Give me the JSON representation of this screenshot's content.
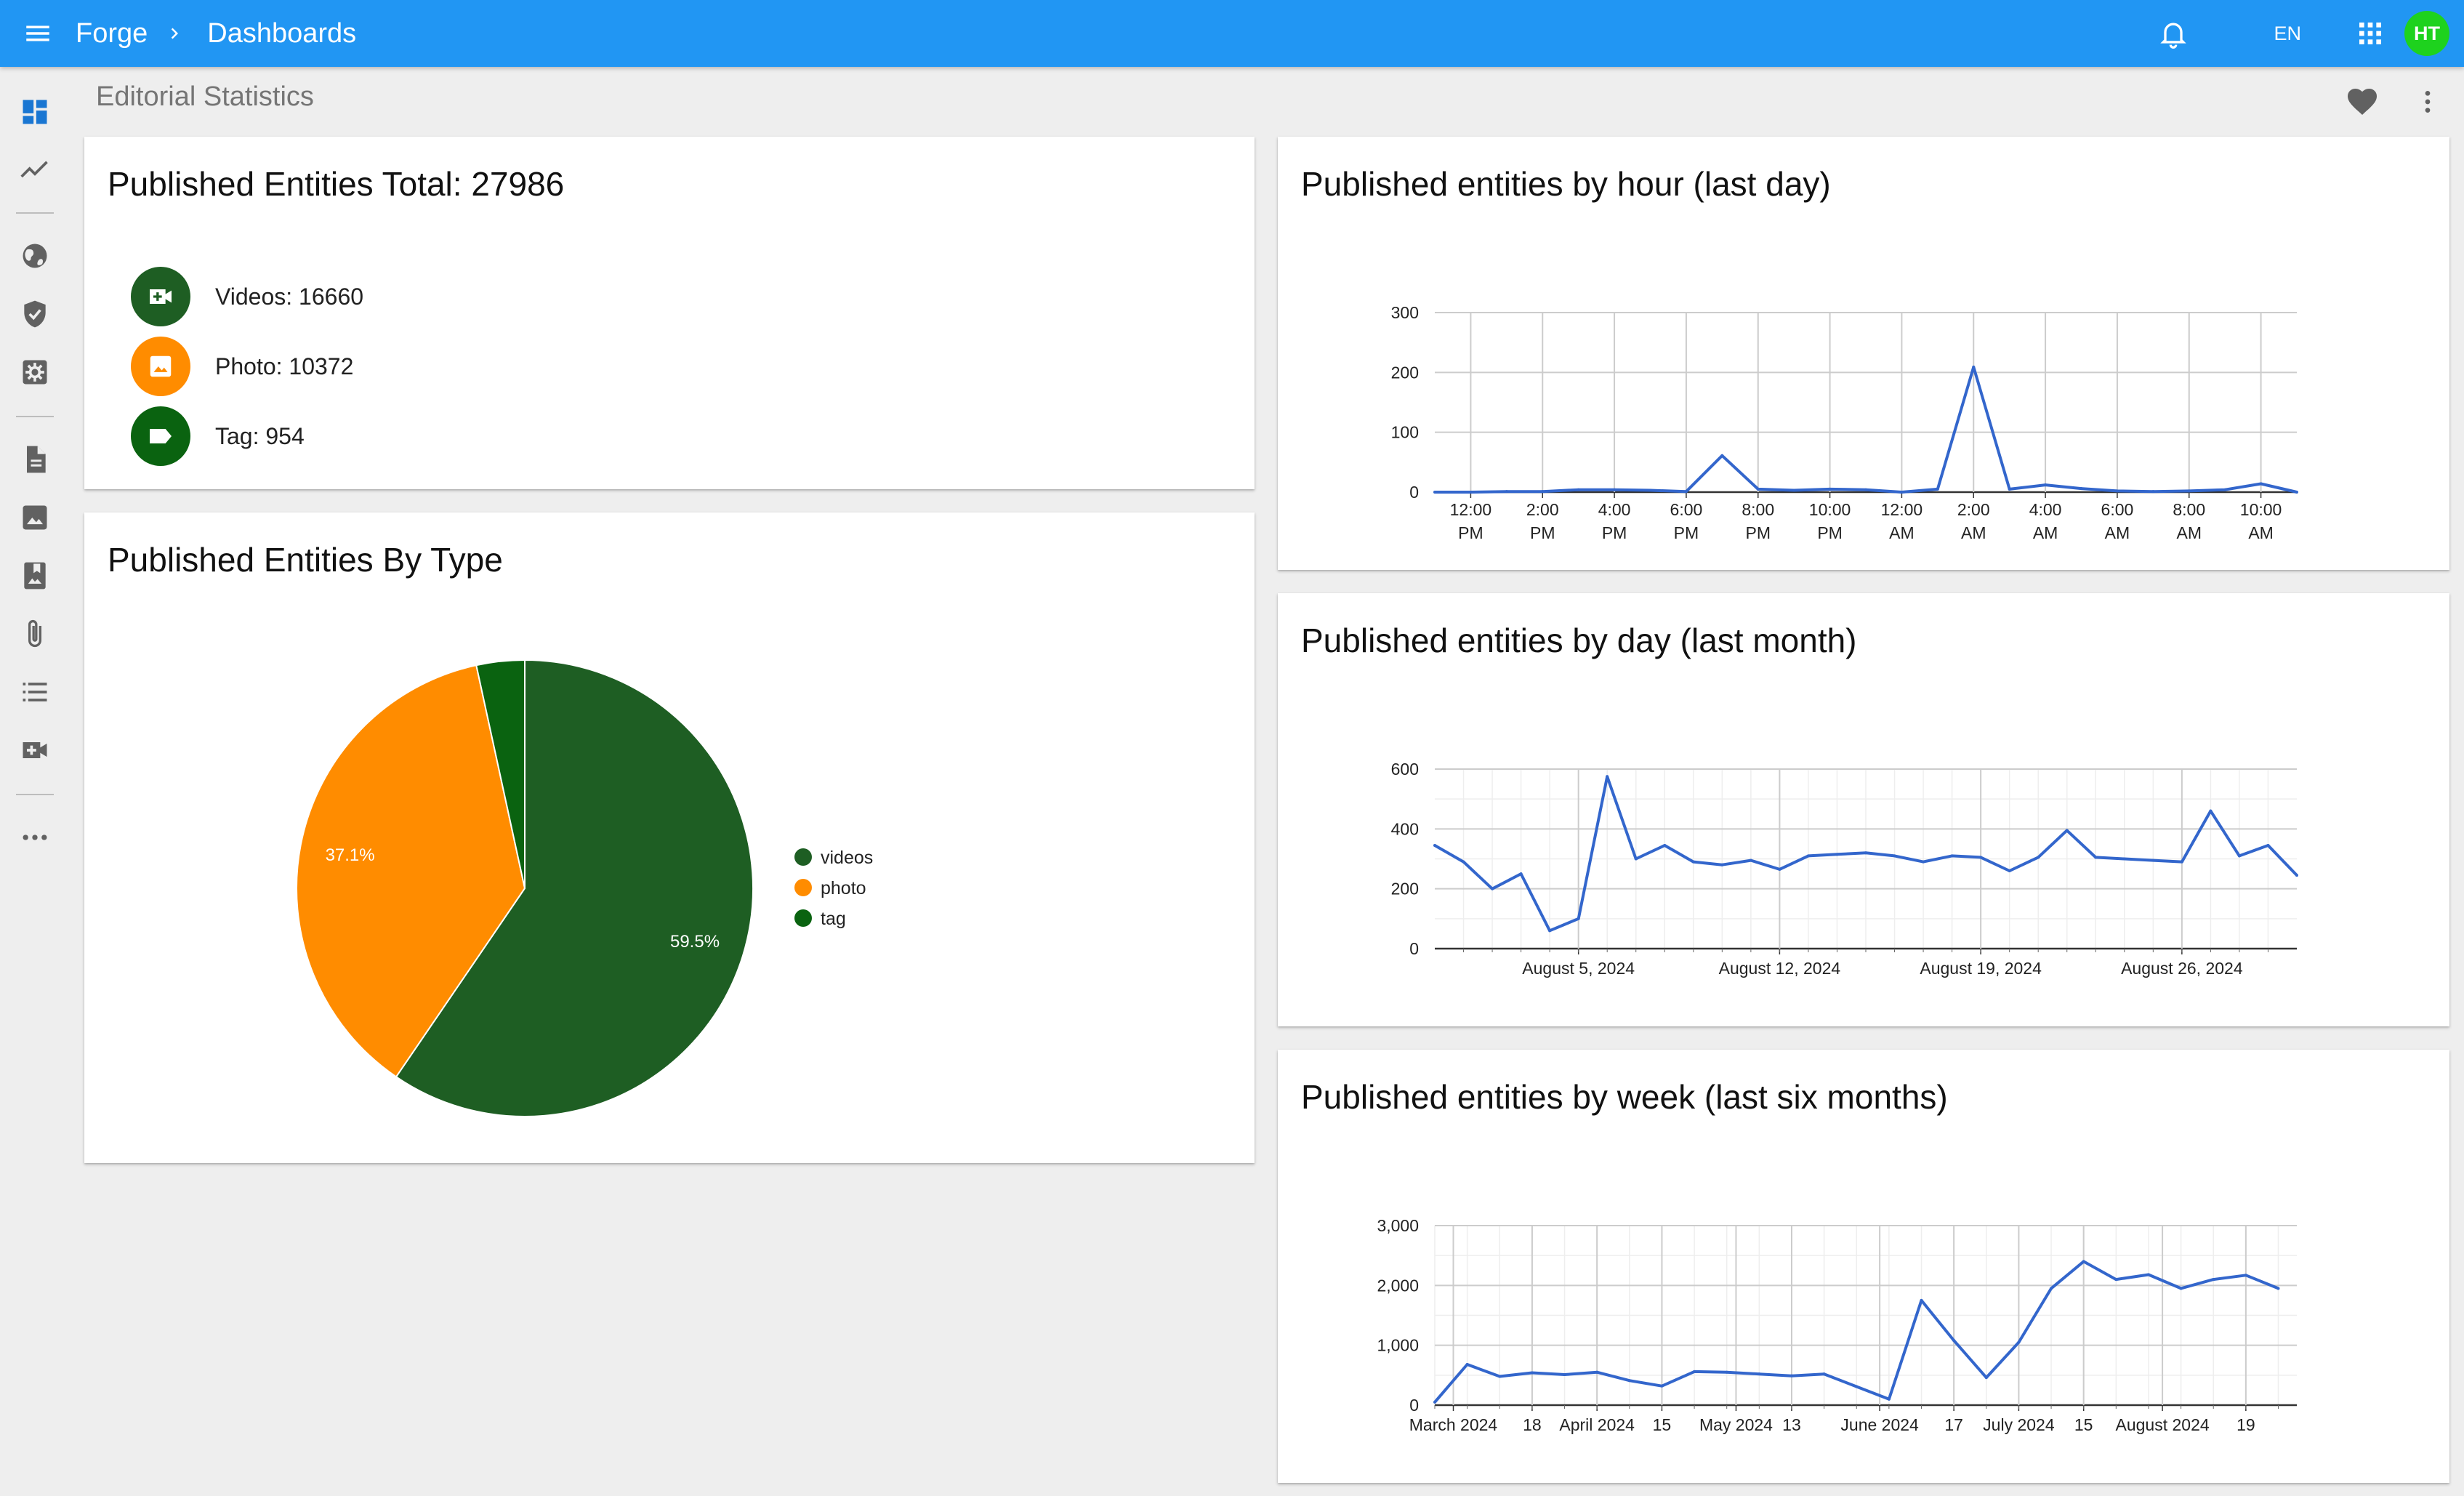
{
  "topbar": {
    "app_name": "Forge",
    "section": "Dashboards",
    "language": "EN",
    "avatar_initials": "HT",
    "color": "#2196f3"
  },
  "sidebar": {
    "items": [
      {
        "icon": "dashboard-icon",
        "active": true
      },
      {
        "icon": "trending-icon"
      },
      {
        "icon": "globe-icon"
      },
      {
        "icon": "shield-check-icon"
      },
      {
        "icon": "settings-box-icon"
      },
      {
        "icon": "document-icon"
      },
      {
        "icon": "image-icon"
      },
      {
        "icon": "bookmark-image-icon"
      },
      {
        "icon": "attachment-icon"
      },
      {
        "icon": "list-icon"
      },
      {
        "icon": "video-add-icon"
      },
      {
        "icon": "more-horizontal-icon"
      }
    ]
  },
  "page": {
    "title": "Editorial Statistics"
  },
  "totals": {
    "title": "Published Entities Total: 27986",
    "items": [
      {
        "label": "Videos: 16660",
        "icon": "video-icon",
        "color": "#1e5e23"
      },
      {
        "label": "Photo: 10372",
        "icon": "photo-icon",
        "color": "#ff8c00"
      },
      {
        "label": "Tag: 954",
        "icon": "tag-icon",
        "color": "#0a6310"
      }
    ]
  },
  "by_type": {
    "title": "Published Entities By Type"
  },
  "by_hour": {
    "title": "Published entities by hour (last day)"
  },
  "by_day": {
    "title": "Published entities by day (last month)"
  },
  "by_week": {
    "title": "Published entities by week (last six months)"
  },
  "chart_data": [
    {
      "type": "pie",
      "title": "Published Entities By Type",
      "labels": [
        "videos",
        "photo",
        "tag"
      ],
      "values": [
        16660,
        10372,
        954
      ],
      "data_labels": [
        "59.5%",
        "37.1%",
        ""
      ],
      "colors": [
        "#1e5e23",
        "#ff8c00",
        "#0a6310"
      ],
      "legend": "right"
    },
    {
      "type": "line",
      "title": "Published entities by hour (last day)",
      "x_tick_labels": [
        [
          "12:00",
          "PM"
        ],
        [
          "2:00",
          "PM"
        ],
        [
          "4:00",
          "PM"
        ],
        [
          "6:00",
          "PM"
        ],
        [
          "8:00",
          "PM"
        ],
        [
          "10:00",
          "PM"
        ],
        [
          "12:00",
          "AM"
        ],
        [
          "2:00",
          "AM"
        ],
        [
          "4:00",
          "AM"
        ],
        [
          "6:00",
          "AM"
        ],
        [
          "8:00",
          "AM"
        ],
        [
          "10:00",
          "AM"
        ]
      ],
      "x_tick_hours": [
        0,
        2,
        4,
        6,
        8,
        10,
        12,
        14,
        16,
        18,
        20,
        22
      ],
      "x_range": [
        -1,
        23
      ],
      "x": [
        -1,
        0,
        1,
        2,
        3,
        4,
        5,
        6,
        7,
        8,
        9,
        10,
        11,
        12,
        13,
        14,
        15,
        16,
        17,
        18,
        19,
        20,
        21,
        22,
        23
      ],
      "y": [
        0,
        0,
        1,
        1,
        4,
        4,
        3,
        1,
        61,
        5,
        3,
        5,
        4,
        0,
        5,
        209,
        5,
        12,
        6,
        2,
        1,
        2,
        4,
        14,
        0
      ],
      "ylim": [
        0,
        300
      ],
      "y_ticks": [
        0,
        100,
        200,
        300
      ],
      "grid": true,
      "color": "#3366cc"
    },
    {
      "type": "line",
      "title": "Published entities by day (last month)",
      "x_tick_labels": [
        "August 5, 2024",
        "August 12, 2024",
        "August 19, 2024",
        "August 26, 2024"
      ],
      "x_tick_dates": [
        "2024-08-05",
        "2024-08-12",
        "2024-08-19",
        "2024-08-26"
      ],
      "x_range": [
        "2024-07-31",
        "2024-08-30"
      ],
      "x": [
        "2024-07-31",
        "2024-08-01",
        "2024-08-02",
        "2024-08-03",
        "2024-08-04",
        "2024-08-05",
        "2024-08-06",
        "2024-08-07",
        "2024-08-08",
        "2024-08-09",
        "2024-08-10",
        "2024-08-11",
        "2024-08-12",
        "2024-08-13",
        "2024-08-14",
        "2024-08-15",
        "2024-08-16",
        "2024-08-17",
        "2024-08-18",
        "2024-08-19",
        "2024-08-20",
        "2024-08-21",
        "2024-08-22",
        "2024-08-23",
        "2024-08-24",
        "2024-08-25",
        "2024-08-26",
        "2024-08-27",
        "2024-08-28",
        "2024-08-29",
        "2024-08-30"
      ],
      "y": [
        345,
        290,
        200,
        250,
        60,
        100,
        575,
        300,
        345,
        290,
        280,
        295,
        265,
        310,
        315,
        320,
        310,
        290,
        310,
        305,
        260,
        305,
        395,
        305,
        300,
        295,
        290,
        460,
        310,
        345,
        245
      ],
      "ylim": [
        0,
        600
      ],
      "y_ticks": [
        0,
        200,
        400,
        600
      ],
      "grid": true,
      "color": "#3366cc"
    },
    {
      "type": "line",
      "title": "Published entities by week (last six months)",
      "x_tick_labels": [
        "March 2024",
        "18",
        "April 2024",
        "15",
        "May 2024",
        "13",
        "June 2024",
        "17",
        "July 2024",
        "15",
        "August 2024",
        "19"
      ],
      "x_tick_dates": [
        "2024-03-01",
        "2024-03-18",
        "2024-04-01",
        "2024-04-15",
        "2024-05-01",
        "2024-05-13",
        "2024-06-01",
        "2024-06-17",
        "2024-07-01",
        "2024-07-15",
        "2024-08-01",
        "2024-08-19"
      ],
      "x_range": [
        "2024-02-26",
        "2024-08-30"
      ],
      "x": [
        "2024-02-26",
        "2024-03-04",
        "2024-03-11",
        "2024-03-18",
        "2024-03-25",
        "2024-04-01",
        "2024-04-08",
        "2024-04-15",
        "2024-04-22",
        "2024-04-29",
        "2024-05-06",
        "2024-05-13",
        "2024-05-20",
        "2024-05-27",
        "2024-06-03",
        "2024-06-10",
        "2024-06-17",
        "2024-06-24",
        "2024-07-01",
        "2024-07-08",
        "2024-07-15",
        "2024-07-22",
        "2024-07-29",
        "2024-08-05",
        "2024-08-12",
        "2024-08-19",
        "2024-08-26"
      ],
      "y": [
        50,
        680,
        480,
        540,
        510,
        550,
        410,
        320,
        560,
        550,
        520,
        490,
        520,
        310,
        100,
        1750,
        1080,
        460,
        1050,
        1950,
        2400,
        2100,
        2180,
        1950,
        2100,
        2170,
        1950
      ],
      "ylim": [
        0,
        3000
      ],
      "y_ticks": [
        0,
        1000,
        2000,
        3000
      ],
      "y_tick_labels": [
        "0",
        "1,000",
        "2,000",
        "3,000"
      ],
      "grid": true,
      "color": "#3366cc"
    }
  ]
}
